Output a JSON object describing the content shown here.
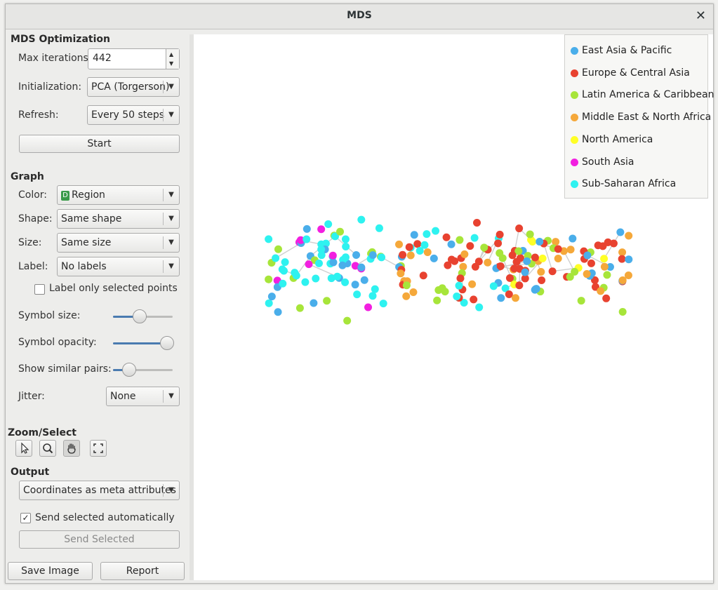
{
  "window": {
    "title": "MDS",
    "close_icon": "close-icon"
  },
  "optimization": {
    "section": "MDS Optimization",
    "max_iter_label": "Max iterations:",
    "max_iter_value": "442",
    "init_label": "Initialization:",
    "init_value": "PCA (Torgerson)",
    "refresh_label": "Refresh:",
    "refresh_value": "Every 50 steps",
    "start_label": "Start"
  },
  "graph": {
    "section": "Graph",
    "color_label": "Color:",
    "color_value": "Region",
    "color_icon_letter": "D",
    "shape_label": "Shape:",
    "shape_value": "Same shape",
    "size_label": "Size:",
    "size_value": "Same size",
    "label_label": "Label:",
    "label_value": "No labels",
    "label_selected_text": "Label only selected points",
    "label_selected_checked": false,
    "symbol_size_label": "Symbol size:",
    "symbol_size_level": 0.42,
    "symbol_opacity_label": "Symbol opacity:",
    "symbol_opacity_level": 1.0,
    "similar_pairs_label": "Show similar pairs:",
    "similar_pairs_level": 0.2,
    "jitter_label": "Jitter:",
    "jitter_value": "None"
  },
  "zoom": {
    "section": "Zoom/Select",
    "tools": [
      "select-icon",
      "zoom-icon",
      "pan-icon",
      "reset-zoom-icon"
    ],
    "active_tool": "pan-icon"
  },
  "output": {
    "section": "Output",
    "mode_value": "Coordinates as meta attributes",
    "auto_send_label": "Send selected automatically",
    "auto_send_checked": true,
    "send_label": "Send Selected"
  },
  "footer": {
    "save_image_label": "Save Image",
    "report_label": "Report"
  },
  "legend": {
    "items": [
      {
        "label": "East Asia & Pacific",
        "color": "#4aaeea"
      },
      {
        "label": "Europe & Central Asia",
        "color": "#e84230"
      },
      {
        "label": "Latin America & Caribbean",
        "color": "#a7e53a"
      },
      {
        "label": "Middle East & North Africa",
        "color": "#f5a83a"
      },
      {
        "label": "North America",
        "color": "#ffff26"
      },
      {
        "label": "South Asia",
        "color": "#f21fe0"
      },
      {
        "label": "Sub-Saharan Africa",
        "color": "#2ef2f0"
      }
    ]
  }
}
